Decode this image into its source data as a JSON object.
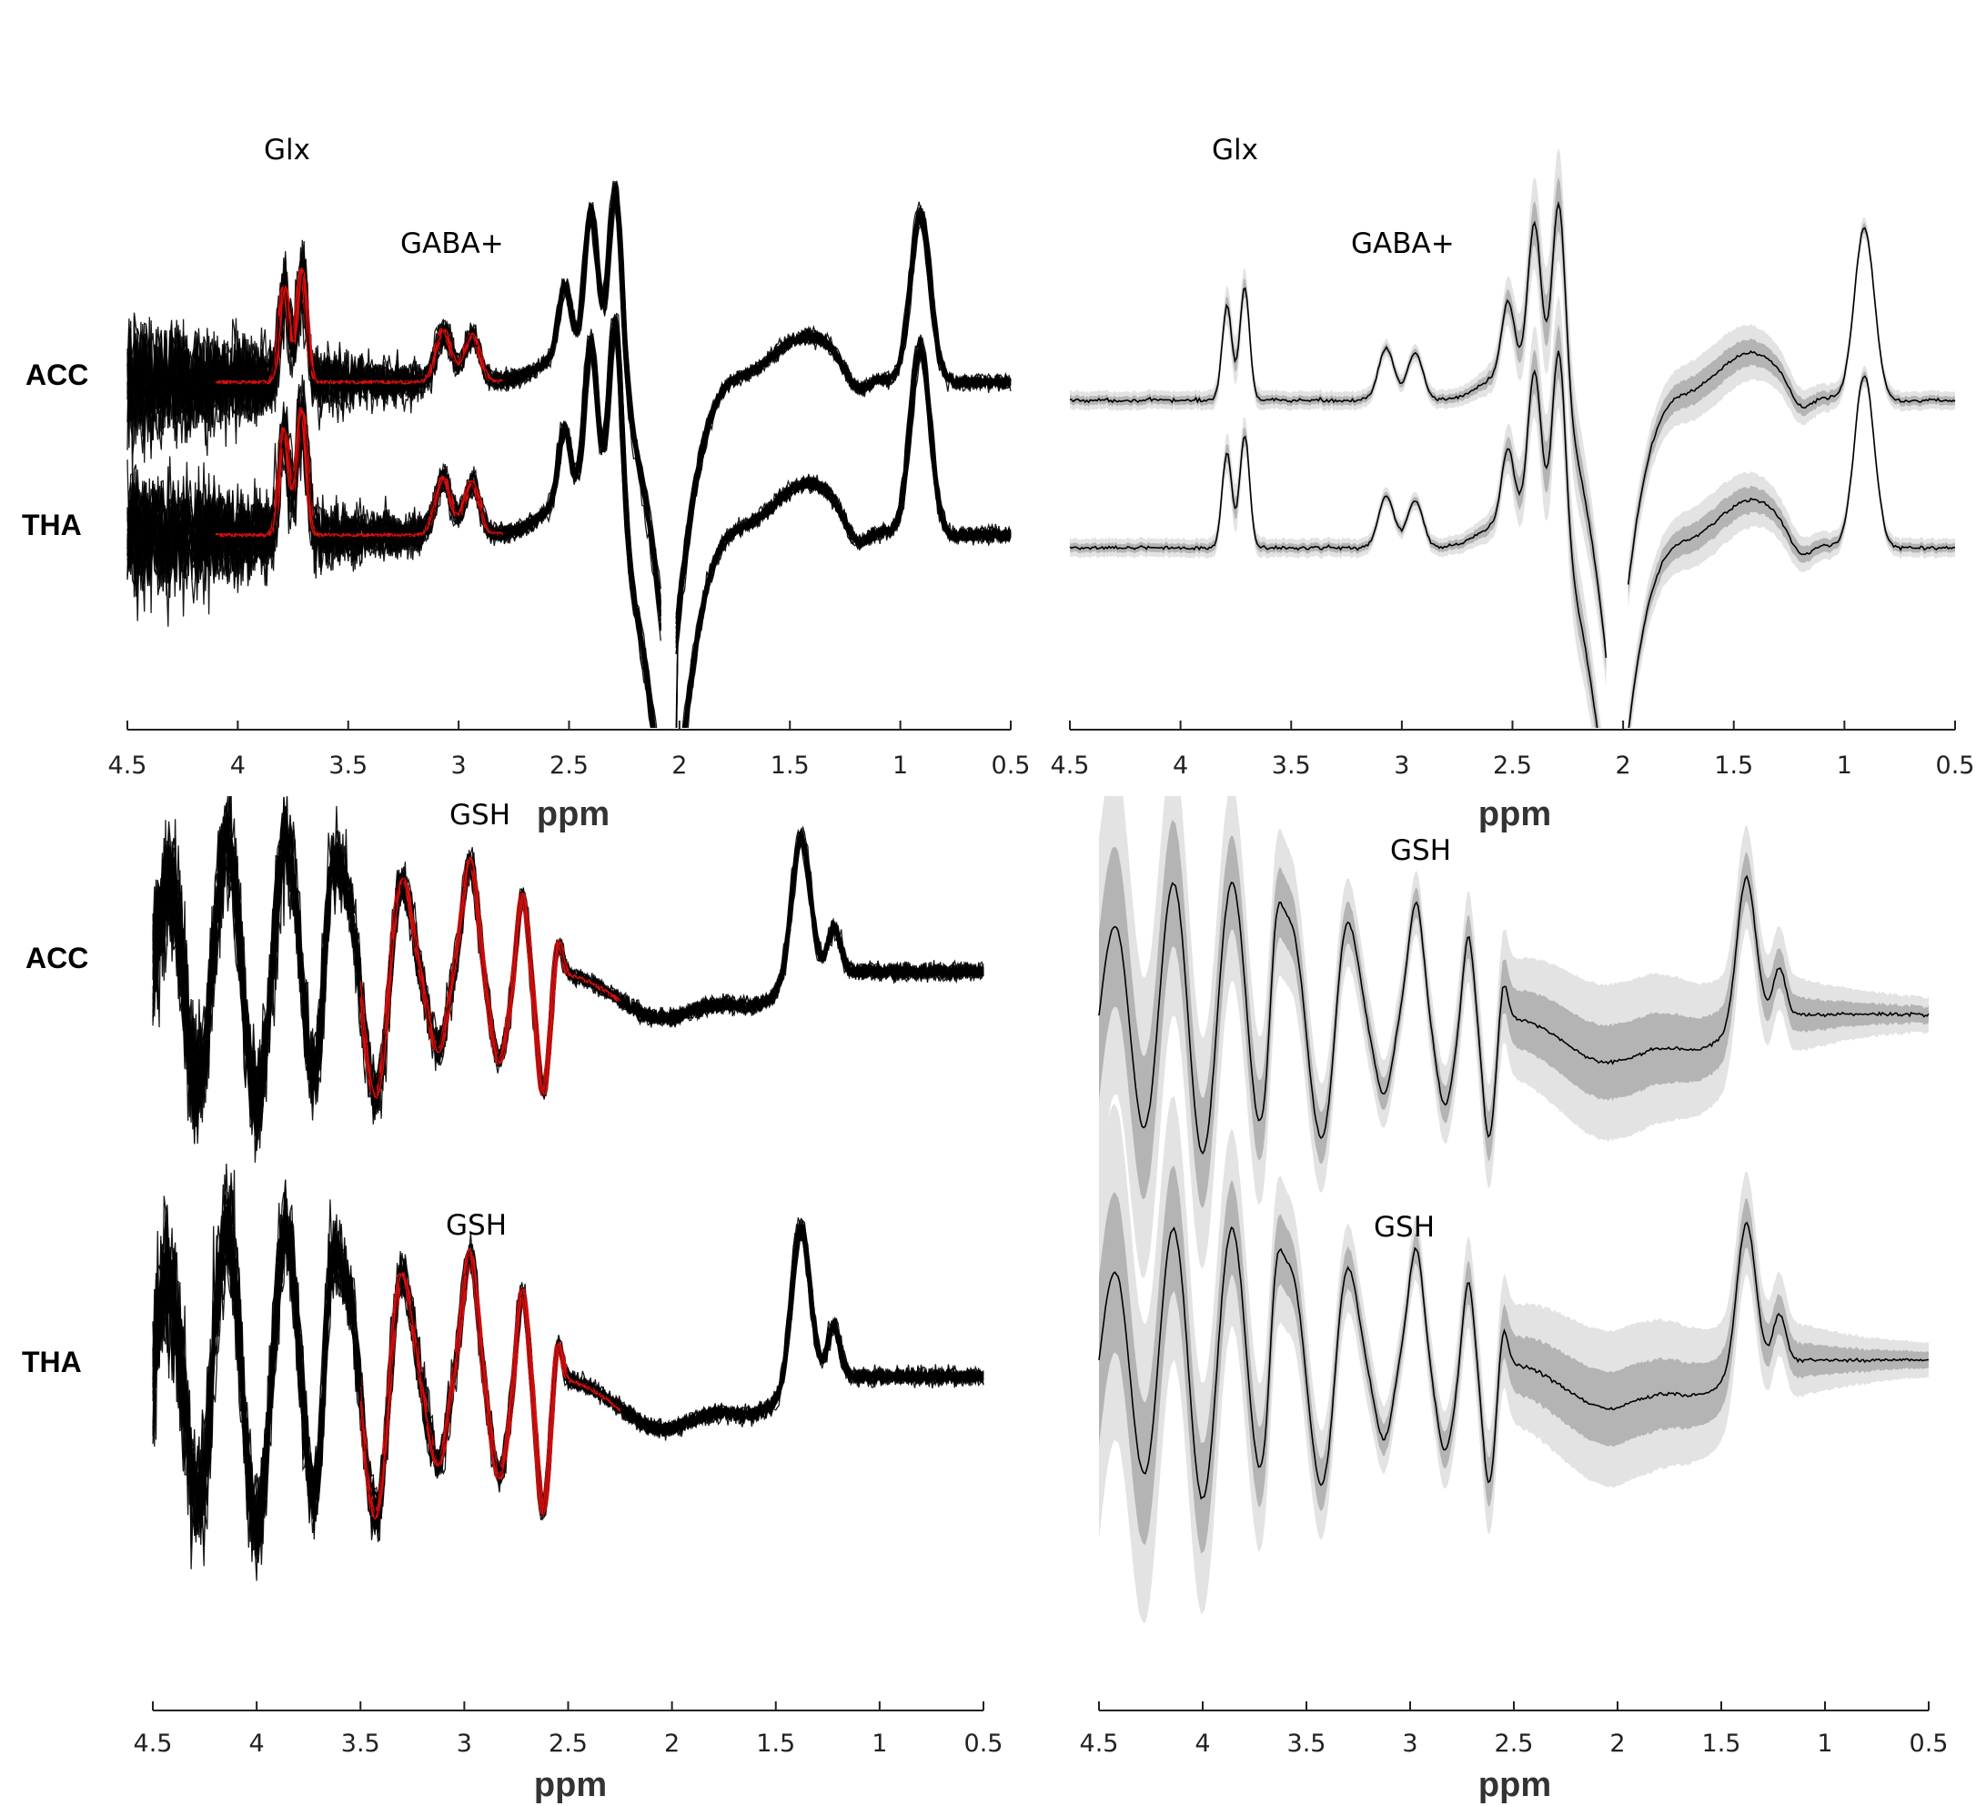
{
  "chart_data": [
    {
      "type": "line",
      "panel": "top-left",
      "xlabel": "ppm",
      "xlim": [
        4.5,
        0.5
      ],
      "x_reversed": true,
      "ticks": [
        "4.5",
        "4",
        "3.5",
        "3",
        "2.5",
        "2",
        "1.5",
        "1",
        "0.5"
      ],
      "rows": [
        "ACC",
        "THA"
      ],
      "annotations": [
        "Glx",
        "GABA+"
      ],
      "series_style": "individual subject spectra (black) with fitted model overlay (red, 4.1–2.8 ppm)",
      "peaks": [
        {
          "ppm": 3.75,
          "label": "Glx"
        },
        {
          "ppm": 3.0,
          "label": "GABA+"
        },
        {
          "ppm": 2.3,
          "label": ""
        },
        {
          "ppm": 0.9,
          "label": ""
        }
      ]
    },
    {
      "type": "area",
      "panel": "top-right",
      "xlabel": "ppm",
      "xlim": [
        4.5,
        0.5
      ],
      "x_reversed": true,
      "ticks": [
        "4.5",
        "4",
        "3.5",
        "3",
        "2.5",
        "2",
        "1.5",
        "1",
        "0.5"
      ],
      "annotations": [
        "Glx",
        "GABA+"
      ],
      "series_style": "mean spectrum (black) with ±1 SD (dark grey) and range (light grey) bands"
    },
    {
      "type": "line",
      "panel": "bottom-left",
      "xlabel": "ppm",
      "xlim": [
        4.5,
        0.5
      ],
      "x_reversed": true,
      "ticks": [
        "4.5",
        "4",
        "3.5",
        "3",
        "2.5",
        "2",
        "1.5",
        "1",
        "0.5"
      ],
      "rows": [
        "ACC",
        "THA"
      ],
      "annotations": [
        "GSH",
        "GSH"
      ],
      "series_style": "individual subject spectra (black) with fitted model overlay (red, 3.5–2.25 ppm)",
      "peaks": [
        {
          "ppm": 2.95,
          "label": "GSH"
        },
        {
          "ppm": 1.38,
          "label": ""
        }
      ]
    },
    {
      "type": "area",
      "panel": "bottom-right",
      "xlabel": "ppm",
      "xlim": [
        4.5,
        0.5
      ],
      "x_reversed": true,
      "ticks": [
        "4.5",
        "4",
        "3.5",
        "3",
        "2.5",
        "2",
        "1.5",
        "1",
        "0.5"
      ],
      "annotations": [
        "GSH",
        "GSH"
      ],
      "series_style": "mean spectrum (black) with ±1 SD (dark grey) and range (light grey) bands"
    }
  ],
  "colors": {
    "spectra": "#000000",
    "fit": "#e0110f",
    "sd_band": "#b4b4b4",
    "range_band": "#e3e3e3",
    "axis": "#222222"
  }
}
